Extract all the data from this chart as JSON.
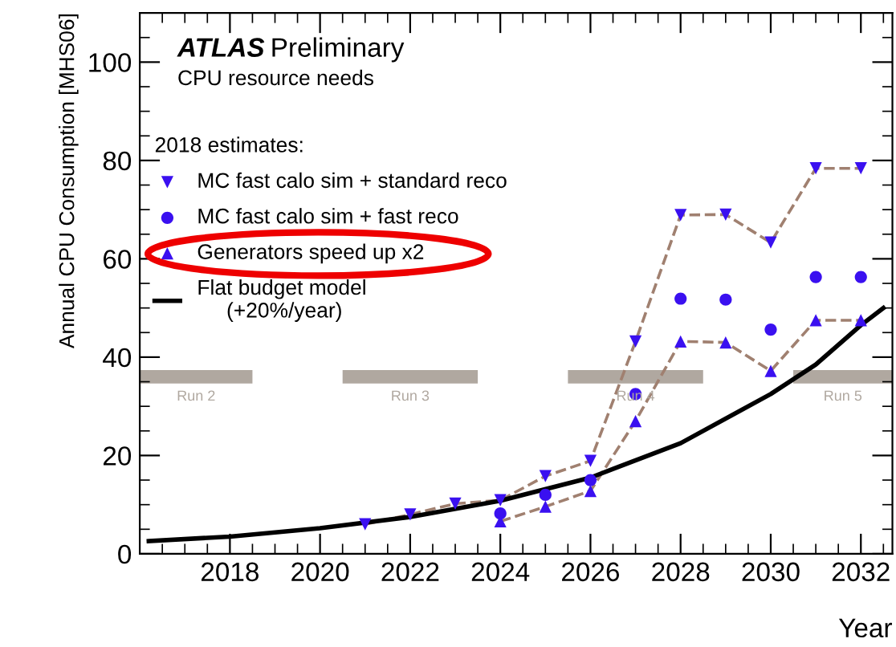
{
  "chart_data": {
    "type": "line",
    "title": "ATLAS Preliminary",
    "subtitle": "CPU resource needs",
    "xlabel": "Year",
    "ylabel": "Annual CPU Consumption [MHS06]",
    "legend_title": "2018 estimates:",
    "xlim": [
      2016,
      2032.7
    ],
    "ylim": [
      0,
      110
    ],
    "xticks": [
      2018,
      2020,
      2022,
      2024,
      2026,
      2028,
      2030,
      2032
    ],
    "yticks": [
      0,
      20,
      40,
      60,
      80,
      100
    ],
    "grid": false,
    "legend": "left",
    "series": [
      {
        "color": "#a08070",
        "line_style": "dashed",
        "marker": "none",
        "x": [
          2021,
          2022,
          2023,
          2024,
          2025,
          2026,
          2027,
          2028,
          2029,
          2030,
          2031,
          2032
        ],
        "values": [
          6,
          8,
          10.2,
          10.9,
          15.8,
          18.9,
          43.2,
          68.9,
          69,
          63.3,
          78.4,
          78.4
        ]
      },
      {
        "color": "#a08070",
        "line_style": "dashed",
        "marker": "none",
        "x": [
          2024,
          2025,
          2026,
          2027,
          2028,
          2029,
          2030,
          2031,
          2032
        ],
        "values": [
          6.6,
          9.6,
          12.8,
          27,
          43.2,
          43,
          37.2,
          47.5,
          47.5
        ]
      },
      {
        "type": "scatter",
        "name": "MC fast calo sim + standard reco",
        "color": "#3a10f0",
        "marker": "triangle_down",
        "x": [
          2021,
          2022,
          2023,
          2024,
          2025,
          2026,
          2027,
          2028,
          2029,
          2030,
          2031,
          2032
        ],
        "values": [
          6,
          8,
          10.2,
          10.9,
          15.8,
          18.9,
          43.2,
          68.9,
          69,
          63.3,
          78.4,
          78.4
        ]
      },
      {
        "type": "scatter",
        "name": "MC fast calo sim + fast reco",
        "color": "#3a10f0",
        "marker": "circle",
        "x": [
          2024,
          2025,
          2026,
          2027,
          2028,
          2029,
          2030,
          2031,
          2032
        ],
        "values": [
          8.2,
          12,
          15,
          32.5,
          51.9,
          51.7,
          45.6,
          56.3,
          56.3
        ]
      },
      {
        "type": "scatter",
        "name": "Generators speed up x2",
        "color": "#3a10f0",
        "marker": "triangle",
        "x": [
          2024,
          2025,
          2026,
          2027,
          2028,
          2029,
          2030,
          2031,
          2032
        ],
        "values": [
          6.6,
          9.6,
          12.8,
          27,
          43.2,
          43,
          37.2,
          47.5,
          47.5
        ]
      },
      {
        "name": "Flat budget model\n     (+20%/year)",
        "color": "#000000",
        "line_style": "solid",
        "marker": "none",
        "x": [
          2016.2,
          2018,
          2020,
          2022,
          2024,
          2026,
          2028,
          2030,
          2031,
          2032,
          2032.5
        ],
        "values": [
          2.6,
          3.5,
          5.2,
          7.5,
          10.8,
          15.5,
          22.5,
          32.5,
          38.5,
          46.5,
          50
        ]
      },
      {
        "type": "step",
        "name": "Run 2",
        "color": "#b0a8a0",
        "x": [
          2016,
          2018.5
        ],
        "values": [
          36,
          36
        ]
      },
      {
        "type": "step",
        "name": "Run 3",
        "color": "#b0a8a0",
        "x": [
          2020.5,
          2023.5
        ],
        "values": [
          36,
          36
        ]
      },
      {
        "type": "step",
        "name": "Run 4",
        "color": "#b0a8a0",
        "x": [
          2025.5,
          2028.5
        ],
        "values": [
          36,
          36
        ]
      },
      {
        "type": "step",
        "name": "Run 5",
        "color": "#b0a8a0",
        "x": [
          2030.5,
          2032.7
        ],
        "values": [
          36,
          36
        ]
      }
    ]
  }
}
